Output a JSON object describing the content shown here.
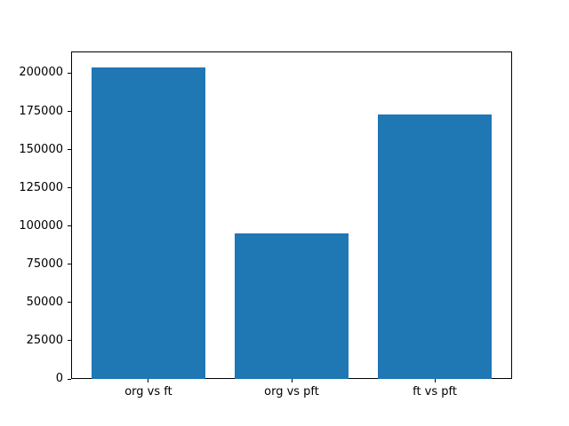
{
  "chart_data": {
    "type": "bar",
    "categories": [
      "org vs ft",
      "org vs pft",
      "ft vs pft"
    ],
    "values": [
      204000,
      95000,
      173000
    ],
    "title": "",
    "xlabel": "",
    "ylabel": "",
    "ylim": [
      0,
      214200
    ],
    "yticks": [
      0,
      25000,
      50000,
      75000,
      100000,
      125000,
      150000,
      175000,
      200000
    ],
    "ytick_labels": [
      "0",
      "25000",
      "50000",
      "75000",
      "100000",
      "125000",
      "150000",
      "175000",
      "200000"
    ],
    "bar_color": "#1f77b4",
    "bar_width_fraction": 0.8,
    "grid": false,
    "legend": null,
    "background_color": "#ffffff",
    "spine_color": "#000000",
    "text_color": "#000000"
  }
}
